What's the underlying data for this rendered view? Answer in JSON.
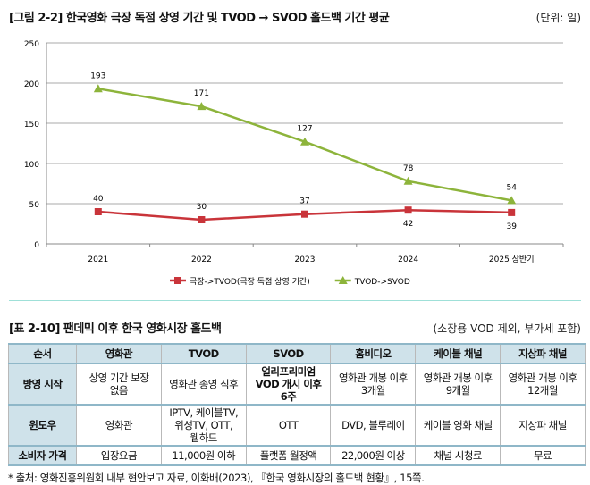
{
  "figure": {
    "title": "[그림 2-2] 한국영화 극장 독점 상영 기간 및 TVOD → SVOD 홀드백 기간 평균",
    "unit": "(단위: 일)"
  },
  "chart_data": {
    "type": "line",
    "categories": [
      "2021",
      "2022",
      "2023",
      "2024",
      "2025 상반기"
    ],
    "ylim": [
      0,
      250
    ],
    "yticks": [
      0,
      50,
      100,
      150,
      200,
      250
    ],
    "grid": true,
    "legend": "bottom",
    "series": [
      {
        "name": "극장->TVOD(극장 독점 상영 기간)",
        "values": [
          40,
          30,
          37,
          42,
          39
        ],
        "color": "#c9343a",
        "marker": "square",
        "label_pos": [
          "above",
          "above",
          "above",
          "below",
          "below"
        ]
      },
      {
        "name": "TVOD->SVOD",
        "values": [
          193,
          171,
          127,
          78,
          54
        ],
        "color": "#8db43b",
        "marker": "triangle",
        "label_pos": [
          "above",
          "above",
          "above",
          "above",
          "above"
        ]
      }
    ]
  },
  "table": {
    "title": "[표 2-10] 팬데믹 이후 한국 영화시장 홀드백",
    "note": "(소장용 VOD 제외, 부가세 포함)",
    "headers": [
      "순서",
      "영화관",
      "TVOD",
      "SVOD",
      "홈비디오",
      "케이블 채널",
      "지상파 채널"
    ],
    "rows": [
      [
        "방영 시작",
        "상영 기간 보장 없음",
        "영화관 종영 직후",
        "얼리프리미엄 VOD 개시 이후 6주",
        "영화관 개봉 이후 3개월",
        "영화관 개봉 이후 9개월",
        "영화관 개봉 이후 12개월"
      ],
      [
        "윈도우",
        "영화관",
        "IPTV, 케이블TV, 위성TV, OTT, 웹하드",
        "OTT",
        "DVD, 블루레이",
        "케이블 영화 채널",
        "지상파 채널"
      ],
      [
        "소비자 가격",
        "입장요금",
        "11,000원 이하",
        "플랫폼 월정액",
        "22,000원 이상",
        "채널 시청료",
        "무료"
      ]
    ],
    "source": "* 출처:  영화진흥위원회 내부 현안보고 자료, 이화배(2023), 『한국 영화시장의 홀드백 현황』, 15쪽."
  }
}
